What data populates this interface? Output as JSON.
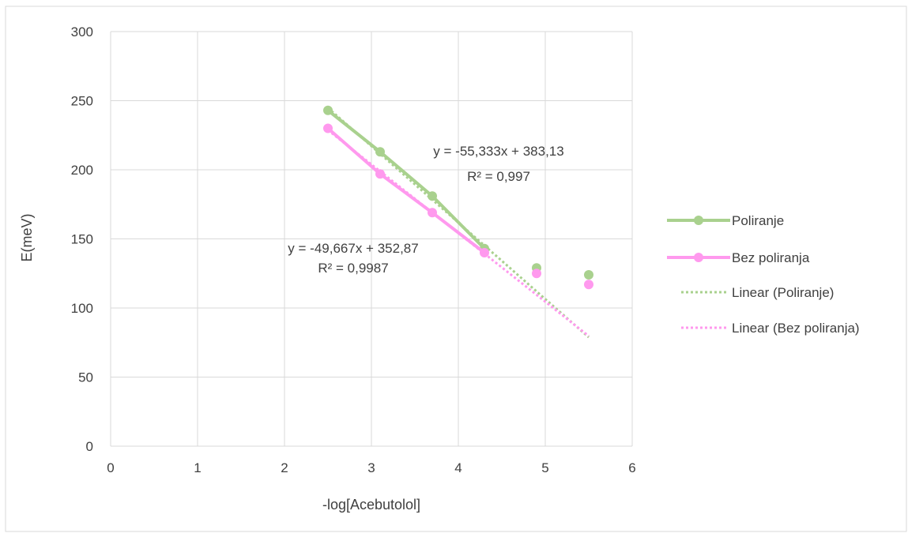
{
  "chart_data": {
    "type": "scatter",
    "title": "",
    "xlabel": "-log[Acebutolol]",
    "ylabel": "E(meV)",
    "xlim": [
      0,
      6
    ],
    "ylim": [
      0,
      300
    ],
    "xticks": [
      0,
      1,
      2,
      3,
      4,
      5,
      6
    ],
    "yticks": [
      0,
      50,
      100,
      150,
      200,
      250,
      300
    ],
    "grid": true,
    "legend_position": "right",
    "series": [
      {
        "name": "Poliranje",
        "color": "#a9d18e",
        "line_points": [
          [
            2.5,
            243
          ],
          [
            3.1,
            213
          ],
          [
            3.7,
            181
          ],
          [
            4.3,
            143
          ]
        ],
        "extra_points": [
          [
            4.9,
            129
          ],
          [
            5.5,
            124
          ]
        ]
      },
      {
        "name": "Bez poliranja",
        "color": "#ff99ee",
        "line_points": [
          [
            2.5,
            230
          ],
          [
            3.1,
            197
          ],
          [
            3.7,
            169
          ],
          [
            4.3,
            140
          ]
        ],
        "extra_points": [
          [
            4.9,
            125
          ],
          [
            5.5,
            117
          ]
        ]
      }
    ],
    "trendlines": [
      {
        "name": "Linear (Poliranje)",
        "color": "#a9d18e",
        "slope": -55.333,
        "intercept": 383.13,
        "x_range": [
          2.5,
          5.5
        ],
        "equation": "y = -55,333x + 383,13",
        "r2": "R² = 0,997"
      },
      {
        "name": "Linear (Bez poliranja)",
        "color": "#ff99ee",
        "slope": -49.667,
        "intercept": 352.87,
        "x_range": [
          2.5,
          5.5
        ],
        "equation": "y = -49,667x + 352,87",
        "r2": "R² = 0,9987"
      }
    ]
  }
}
